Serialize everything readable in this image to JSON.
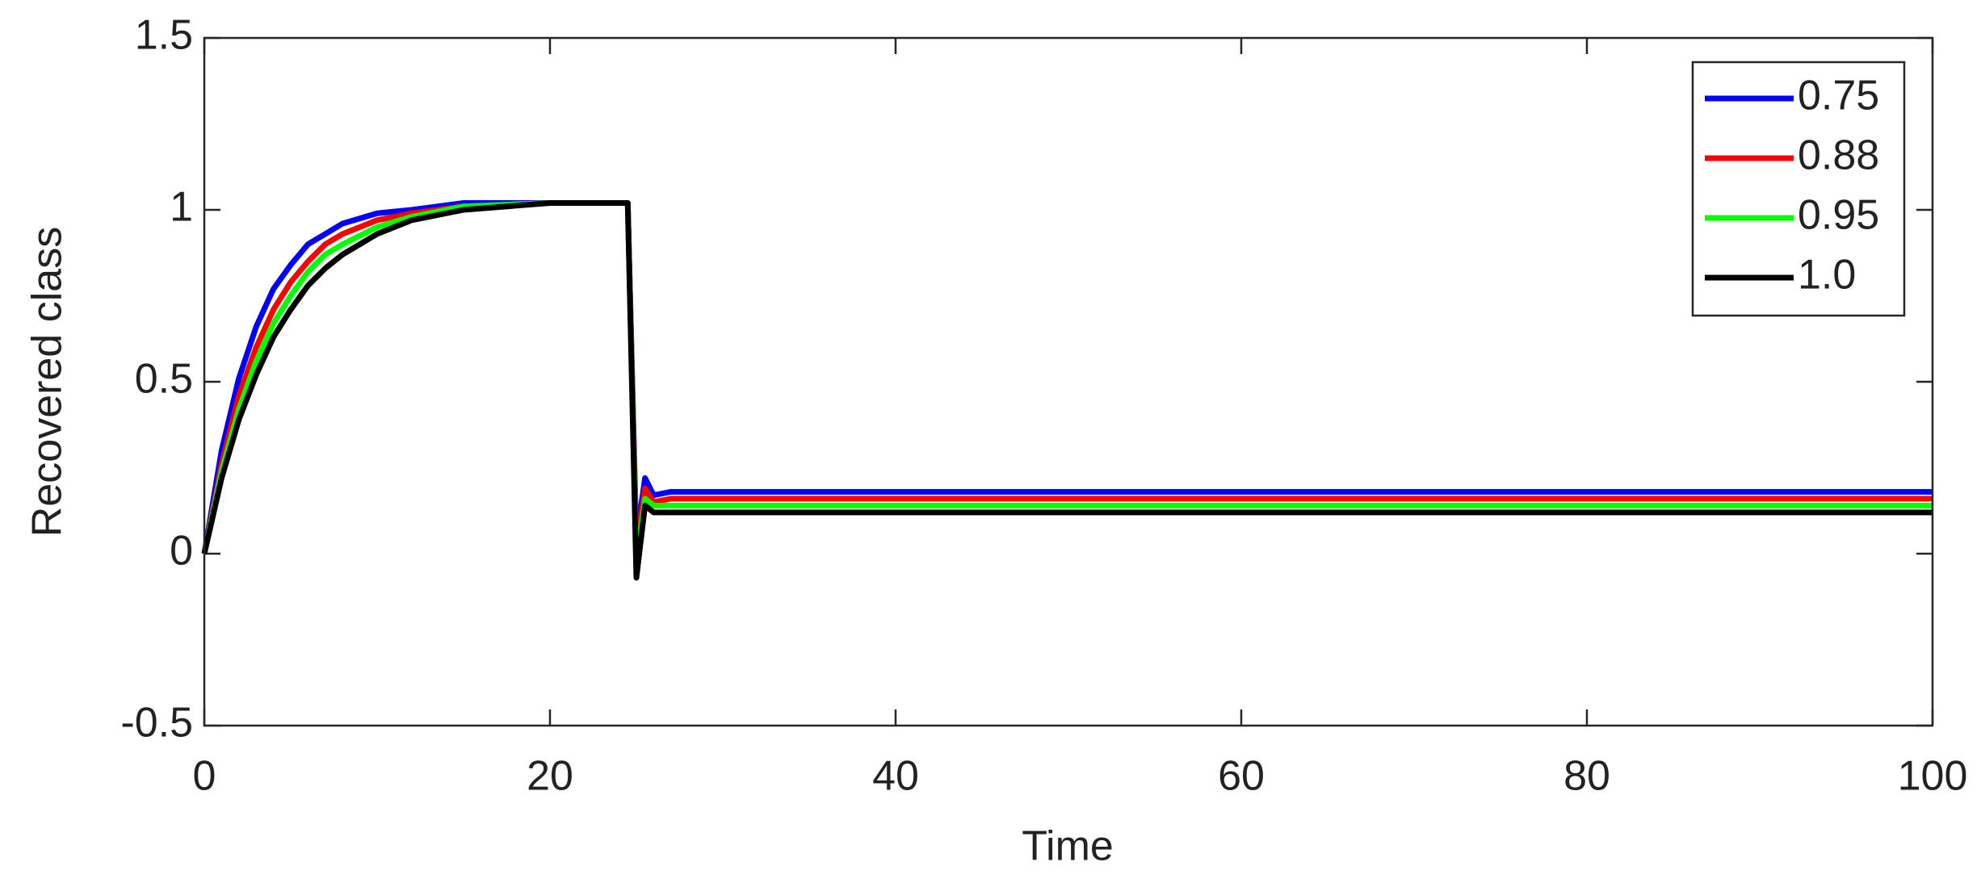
{
  "chart_data": {
    "type": "line",
    "xlabel": "Time",
    "ylabel": "Recovered class",
    "x": [
      0,
      1,
      2,
      3,
      4,
      5,
      6,
      7,
      8,
      10,
      12,
      15,
      20,
      24.5,
      25,
      25.5,
      26,
      27,
      100
    ],
    "series": [
      {
        "name": "0.75",
        "color": "#0000ff",
        "values": [
          0,
          0.3,
          0.51,
          0.66,
          0.77,
          0.84,
          0.9,
          0.93,
          0.96,
          0.99,
          1.0,
          1.02,
          1.02,
          1.02,
          0.04,
          0.22,
          0.17,
          0.18,
          0.18
        ]
      },
      {
        "name": "0.88",
        "color": "#ff0000",
        "values": [
          0,
          0.26,
          0.46,
          0.6,
          0.71,
          0.79,
          0.85,
          0.9,
          0.93,
          0.97,
          0.99,
          1.01,
          1.02,
          1.02,
          0.01,
          0.19,
          0.15,
          0.16,
          0.16
        ]
      },
      {
        "name": "0.95",
        "color": "#00ff00",
        "values": [
          0,
          0.24,
          0.42,
          0.56,
          0.67,
          0.75,
          0.82,
          0.87,
          0.9,
          0.95,
          0.98,
          1.01,
          1.02,
          1.02,
          -0.03,
          0.16,
          0.14,
          0.14,
          0.14
        ]
      },
      {
        "name": "1.0",
        "color": "#000000",
        "values": [
          0,
          0.22,
          0.39,
          0.52,
          0.63,
          0.71,
          0.78,
          0.83,
          0.87,
          0.93,
          0.97,
          1.0,
          1.02,
          1.02,
          -0.07,
          0.14,
          0.12,
          0.12,
          0.12
        ]
      }
    ],
    "xlim": [
      0,
      100
    ],
    "xticks": [
      0,
      20,
      40,
      60,
      80,
      100
    ],
    "ylim": [
      -0.5,
      1.5
    ],
    "yticks": [
      -0.5,
      0,
      0.5,
      1,
      1.5
    ],
    "legend": "northeast"
  }
}
